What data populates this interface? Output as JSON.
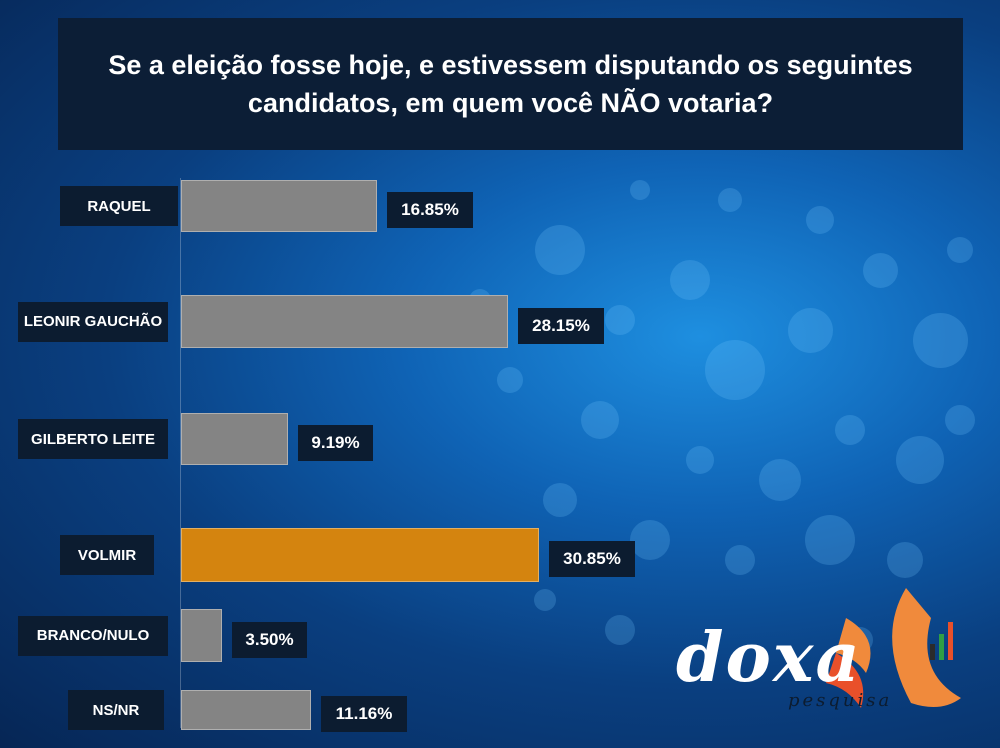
{
  "chart_data": {
    "type": "bar",
    "orientation": "horizontal",
    "title": "Se a eleição fosse hoje, e estivessem disputando os seguintes candidatos, em quem você NÃO votaria?",
    "categories": [
      "RAQUEL",
      "LEONIR GAUCHÃO",
      "GILBERTO LEITE",
      "VOLMIR",
      "BRANCO/NULO",
      "NS/NR"
    ],
    "values": [
      16.85,
      28.15,
      9.19,
      30.85,
      3.5,
      11.16
    ],
    "value_labels": [
      "16.85%",
      "28.15%",
      "9.19%",
      "30.85%",
      "3.50%",
      "11.16%"
    ],
    "highlight_category": "VOLMIR",
    "colors": {
      "default": "#848484",
      "highlight": "#d4840f"
    },
    "xlim": [
      0,
      40
    ],
    "grid": false,
    "legend": "none"
  },
  "brand": {
    "name": "doxa",
    "tagline": "pesquisa",
    "colors": [
      "#f08a3c",
      "#e9502a",
      "#2f9e44"
    ]
  }
}
